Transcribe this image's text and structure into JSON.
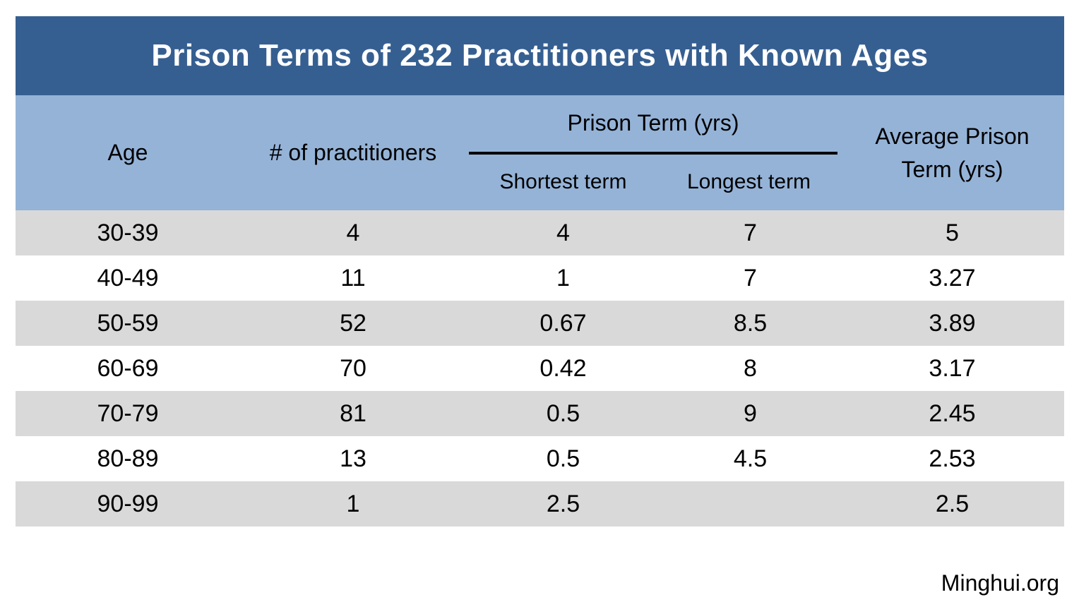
{
  "title": "Prison Terms of 232 Practitioners with Known Ages",
  "source": "Minghui.org",
  "colors": {
    "title_bg": "#365f91",
    "title_text": "#ffffff",
    "header_bg": "#95b3d7",
    "row_alt_bg": "#d9d9d9",
    "row_bg": "#ffffff",
    "body_text": "#000000"
  },
  "table": {
    "header": {
      "age": "Age",
      "practitioners": "# of practitioners",
      "group": "Prison Term (yrs)",
      "shortest": "Shortest term",
      "longest": "Longest term",
      "average_line1": "Average Prison",
      "average_line2": "Term (yrs)"
    },
    "rows": [
      {
        "age": "30-39",
        "count": "4",
        "shortest": "4",
        "longest": "7",
        "average": "5"
      },
      {
        "age": "40-49",
        "count": "11",
        "shortest": "1",
        "longest": "7",
        "average": "3.27"
      },
      {
        "age": "50-59",
        "count": "52",
        "shortest": "0.67",
        "longest": "8.5",
        "average": "3.89"
      },
      {
        "age": "60-69",
        "count": "70",
        "shortest": "0.42",
        "longest": "8",
        "average": "3.17"
      },
      {
        "age": "70-79",
        "count": "81",
        "shortest": "0.5",
        "longest": "9",
        "average": "2.45"
      },
      {
        "age": "80-89",
        "count": "13",
        "shortest": "0.5",
        "longest": "4.5",
        "average": "2.53"
      },
      {
        "age": "90-99",
        "count": "1",
        "shortest": "2.5",
        "longest": "",
        "average": "2.5"
      }
    ]
  },
  "chart_data": {
    "type": "table",
    "title": "Prison Terms of 232 Practitioners with Known Ages",
    "columns": [
      "Age",
      "# of practitioners",
      "Prison Term (yrs) — Shortest term",
      "Prison Term (yrs) — Longest term",
      "Average Prison Term (yrs)"
    ],
    "rows": [
      [
        "30-39",
        4,
        4,
        7,
        5
      ],
      [
        "40-49",
        11,
        1,
        7,
        3.27
      ],
      [
        "50-59",
        52,
        0.67,
        8.5,
        3.89
      ],
      [
        "60-69",
        70,
        0.42,
        8,
        3.17
      ],
      [
        "70-79",
        81,
        0.5,
        9,
        2.45
      ],
      [
        "80-89",
        13,
        0.5,
        4.5,
        2.53
      ],
      [
        "90-99",
        1,
        2.5,
        null,
        2.5
      ]
    ],
    "source": "Minghui.org"
  }
}
